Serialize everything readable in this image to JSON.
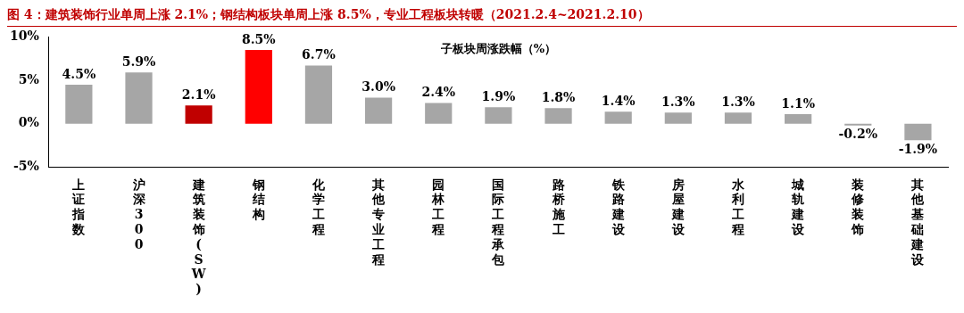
{
  "chart_data": {
    "type": "bar",
    "title": "图 4：建筑装饰行业单周上涨 2.1%；钢结构板块单周上涨 8.5%，专业工程板块转暖（2021.2.4~2021.2.10）",
    "annotations": [
      "子板块周涨跌幅（%）"
    ],
    "categories": [
      "上证指数",
      "沪深300",
      "建筑装饰(SW)",
      "钢结构",
      "化学工程",
      "其他专业工程",
      "园林工程",
      "国际工程承包",
      "路桥施工",
      "铁路建设",
      "房屋建设",
      "水利工程",
      "城轨建设",
      "装修装饰",
      "其他基础建设"
    ],
    "values": [
      4.5,
      5.9,
      2.1,
      8.5,
      6.7,
      3.0,
      2.4,
      1.9,
      1.8,
      1.4,
      1.3,
      1.3,
      1.1,
      -0.2,
      -1.9
    ],
    "value_labels": [
      "4.5%",
      "5.9%",
      "2.1%",
      "8.5%",
      "6.7%",
      "3.0%",
      "2.4%",
      "1.9%",
      "1.8%",
      "1.4%",
      "1.3%",
      "1.3%",
      "1.1%",
      "-0.2%",
      "-1.9%"
    ],
    "colors": [
      "#a6a6a6",
      "#a6a6a6",
      "#c00000",
      "#ff0000",
      "#a6a6a6",
      "#a6a6a6",
      "#a6a6a6",
      "#a6a6a6",
      "#a6a6a6",
      "#a6a6a6",
      "#a6a6a6",
      "#a6a6a6",
      "#a6a6a6",
      "#a6a6a6",
      "#a6a6a6"
    ],
    "ylim": [
      -5,
      10
    ],
    "yticks": [
      {
        "value": -5,
        "label": "-5%"
      },
      {
        "value": 0,
        "label": "0%"
      },
      {
        "value": 5,
        "label": "5%"
      },
      {
        "value": 10,
        "label": "10%"
      }
    ],
    "grid": false,
    "legend": false
  }
}
